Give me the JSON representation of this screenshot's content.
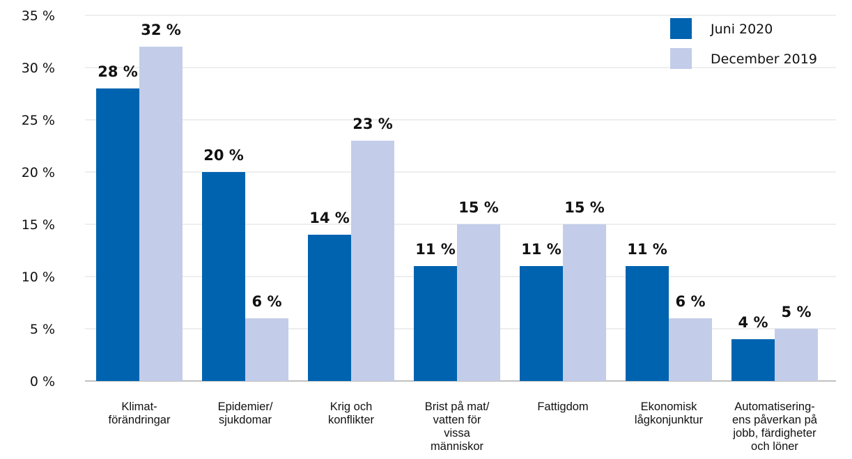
{
  "chart_data": {
    "type": "bar",
    "title": "",
    "xlabel": "",
    "ylabel": "",
    "ylim": [
      0,
      35
    ],
    "yticks": [
      "0 %",
      "5 %",
      "10 %",
      "15 %",
      "20 %",
      "25 %",
      "30 %",
      "35 %"
    ],
    "grid": true,
    "legend_position": "top-right",
    "categories": [
      [
        "Klimat-",
        "förändringar"
      ],
      [
        "Epidemier/",
        "sjukdomar"
      ],
      [
        "Krig och",
        "konflikter"
      ],
      [
        "Brist på mat/",
        "vatten för",
        "vissa",
        "människor"
      ],
      [
        "Fattigdom"
      ],
      [
        "Ekonomisk",
        "lågkonjunktur"
      ],
      [
        "Automatisering-",
        "ens påverkan på",
        "jobb, färdigheter",
        "och löner"
      ]
    ],
    "series": [
      {
        "name": "Juni 2020",
        "color": "#0063b0",
        "values": [
          28,
          20,
          14,
          11,
          11,
          11,
          4
        ],
        "labels": [
          "28 %",
          "20 %",
          "14 %",
          "11 %",
          "11 %",
          "11 %",
          "4 %"
        ]
      },
      {
        "name": "December 2019",
        "color": "#c3cde9",
        "values": [
          32,
          6,
          23,
          15,
          15,
          6,
          5
        ],
        "labels": [
          "32 %",
          "6 %",
          "23 %",
          "15 %",
          "15 %",
          "6 %",
          "5 %"
        ]
      }
    ]
  }
}
